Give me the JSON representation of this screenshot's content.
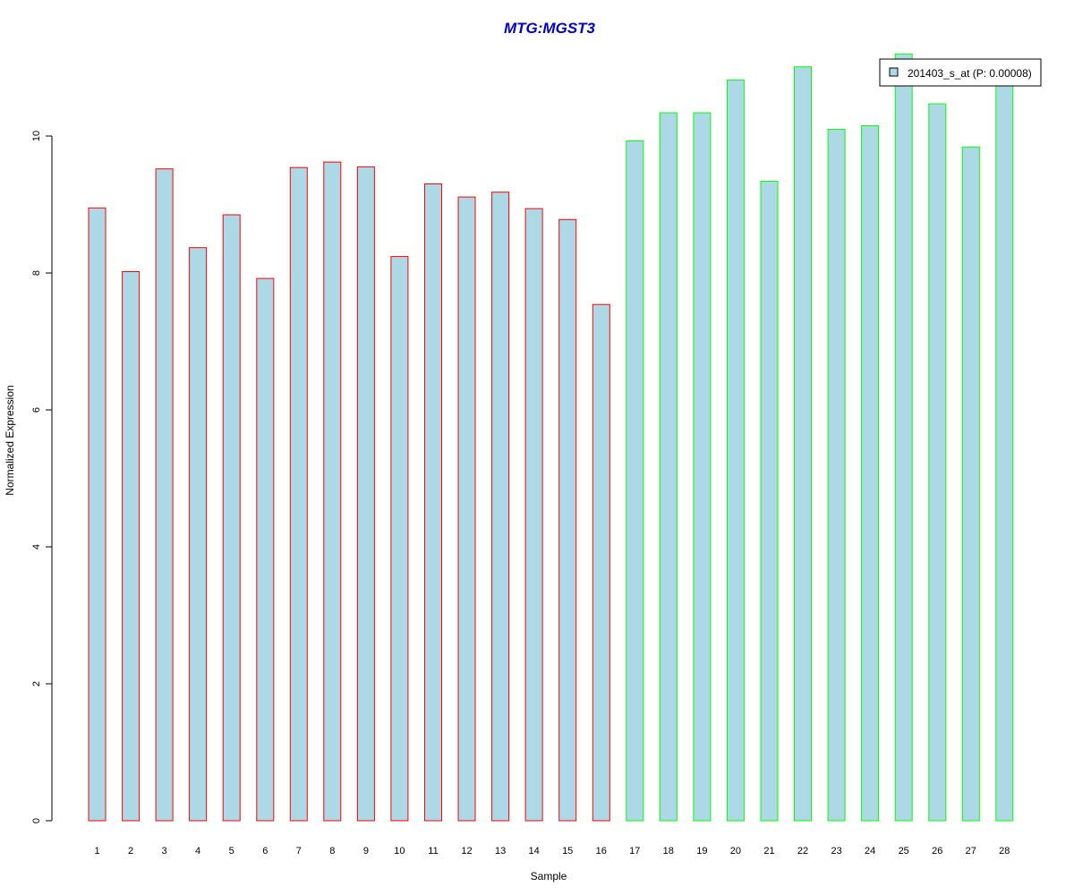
{
  "chart_data": {
    "type": "bar",
    "title": "MTG:MGST3",
    "xlabel": "Sample",
    "ylabel": "Normalized Expression",
    "categories": [
      "1",
      "2",
      "3",
      "4",
      "5",
      "6",
      "7",
      "8",
      "9",
      "10",
      "11",
      "12",
      "13",
      "14",
      "15",
      "16",
      "17",
      "18",
      "19",
      "20",
      "21",
      "22",
      "23",
      "24",
      "25",
      "26",
      "27",
      "28"
    ],
    "series": [
      {
        "name": "201403_s_at (P: 0.00008)",
        "values": [
          8.95,
          8.02,
          9.52,
          8.37,
          8.85,
          7.92,
          9.54,
          9.62,
          9.55,
          8.24,
          9.3,
          9.11,
          9.18,
          8.94,
          8.78,
          7.54,
          9.93,
          10.34,
          10.34,
          10.82,
          9.34,
          11.01,
          10.1,
          10.15,
          11.2,
          10.47,
          9.84,
          10.82
        ]
      }
    ],
    "group_border_colors": [
      "#ff0000",
      "#ff0000",
      "#ff0000",
      "#ff0000",
      "#ff0000",
      "#ff0000",
      "#ff0000",
      "#ff0000",
      "#ff0000",
      "#ff0000",
      "#ff0000",
      "#ff0000",
      "#ff0000",
      "#ff0000",
      "#ff0000",
      "#ff0000",
      "#00ff00",
      "#00ff00",
      "#00ff00",
      "#00ff00",
      "#00ff00",
      "#00ff00",
      "#00ff00",
      "#00ff00",
      "#00ff00",
      "#00ff00",
      "#00ff00",
      "#00ff00"
    ],
    "yticks": [
      0,
      2,
      4,
      6,
      8,
      10
    ],
    "ylim": [
      0,
      11.2
    ],
    "grid": false,
    "legend_position": "top-right",
    "colors": {
      "bar_fill": "#add8e6",
      "title": "#0000cc",
      "axis": "#000000"
    }
  }
}
